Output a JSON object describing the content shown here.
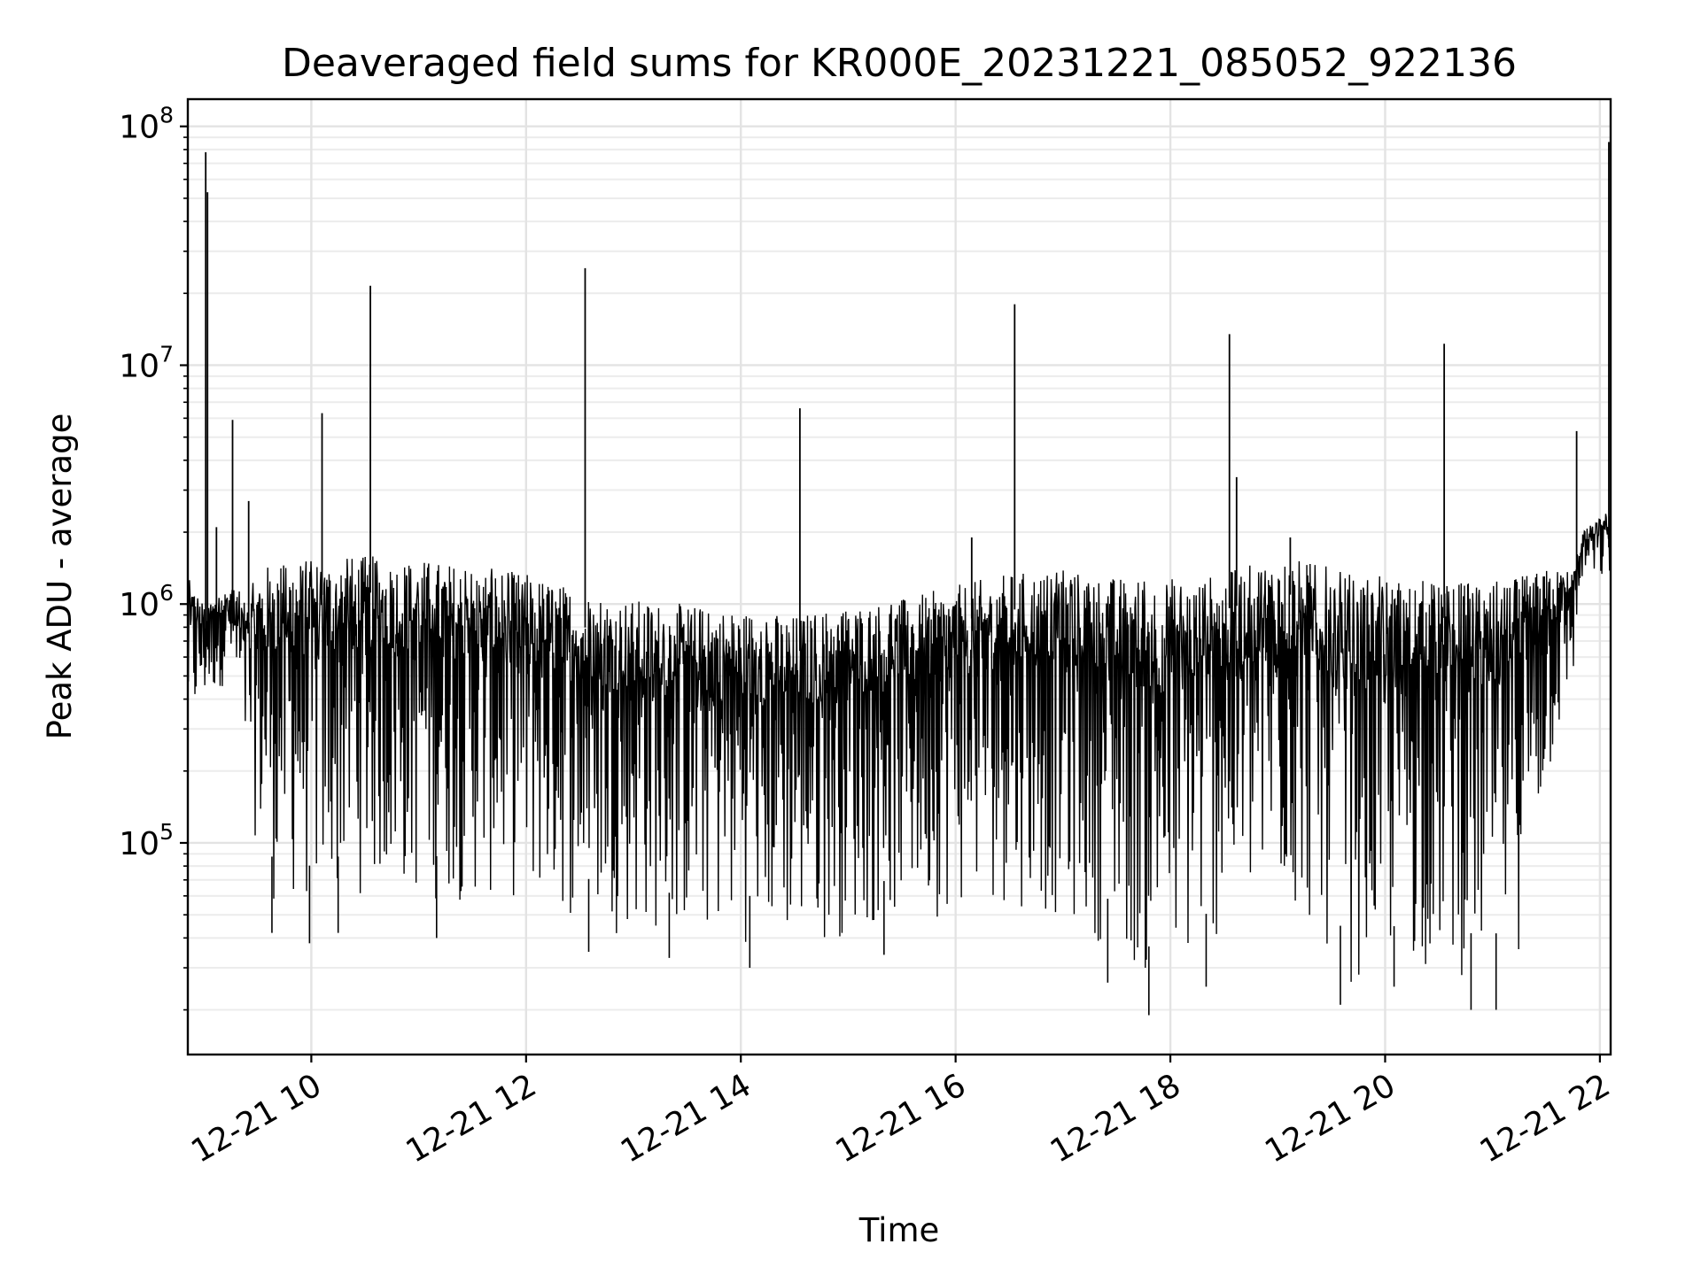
{
  "chart_data": {
    "type": "line",
    "title": "Deaveraged field sums for KR000E_20231221_085052_922136",
    "xlabel": "Time",
    "ylabel": "Peak ADU - average",
    "yscale": "log",
    "xlim": [
      "2023-12-21 08:51",
      "2023-12-21 22:06"
    ],
    "ylim": [
      13000,
      130000000
    ],
    "grid": true,
    "legend": "none",
    "x_ticks": [
      "2023-12-21 10:00",
      "2023-12-21 12:00",
      "2023-12-21 14:00",
      "2023-12-21 16:00",
      "2023-12-21 18:00",
      "2023-12-21 20:00",
      "2023-12-21 22:00"
    ],
    "x_tick_labels": [
      "12-21 10",
      "12-21 12",
      "12-21 14",
      "12-21 16",
      "12-21 18",
      "12-21 20",
      "12-21 22"
    ],
    "y_tick_values": [
      100000,
      1000000,
      10000000,
      100000000
    ],
    "y_tick_labels": [
      {
        "base": "10",
        "exp": "5"
      },
      {
        "base": "10",
        "exp": "6"
      },
      {
        "base": "10",
        "exp": "7"
      },
      {
        "base": "10",
        "exp": "8"
      }
    ],
    "series": [
      {
        "color": "#000000",
        "envelope": [
          {
            "t": "2023-12-21 08:51",
            "low": 250000,
            "high": 1300000
          },
          {
            "t": "2023-12-21 09:00",
            "low": 350000,
            "high": 1000000
          },
          {
            "t": "2023-12-21 09:15",
            "low": 500000,
            "high": 1200000
          },
          {
            "t": "2023-12-21 09:22",
            "low": 200000,
            "high": 1100000
          },
          {
            "t": "2023-12-21 09:30",
            "low": 90000,
            "high": 1300000
          },
          {
            "t": "2023-12-21 09:37",
            "low": 55000,
            "high": 1500000
          },
          {
            "t": "2023-12-21 10:00",
            "low": 50000,
            "high": 1550000
          },
          {
            "t": "2023-12-21 10:30",
            "low": 60000,
            "high": 1600000
          },
          {
            "t": "2023-12-21 11:00",
            "low": 55000,
            "high": 1550000
          },
          {
            "t": "2023-12-21 11:30",
            "low": 55000,
            "high": 1450000
          },
          {
            "t": "2023-12-21 12:00",
            "low": 55000,
            "high": 1350000
          },
          {
            "t": "2023-12-21 12:30",
            "low": 45000,
            "high": 1150000
          },
          {
            "t": "2023-12-21 13:00",
            "low": 40000,
            "high": 1050000
          },
          {
            "t": "2023-12-21 13:30",
            "low": 38000,
            "high": 1000000
          },
          {
            "t": "2023-12-21 14:00",
            "low": 38000,
            "high": 950000
          },
          {
            "t": "2023-12-21 14:30",
            "low": 35000,
            "high": 900000
          },
          {
            "t": "2023-12-21 15:00",
            "low": 40000,
            "high": 1000000
          },
          {
            "t": "2023-12-21 15:30",
            "low": 45000,
            "high": 1050000
          },
          {
            "t": "2023-12-21 16:00",
            "low": 50000,
            "high": 1200000
          },
          {
            "t": "2023-12-21 16:30",
            "low": 55000,
            "high": 1350000
          },
          {
            "t": "2023-12-21 17:00",
            "low": 45000,
            "high": 1400000
          },
          {
            "t": "2023-12-21 17:30",
            "low": 35000,
            "high": 1300000
          },
          {
            "t": "2023-12-21 17:50",
            "low": 22000,
            "high": 1300000
          },
          {
            "t": "2023-12-21 18:15",
            "low": 28000,
            "high": 1300000
          },
          {
            "t": "2023-12-21 18:30",
            "low": 40000,
            "high": 1350000
          },
          {
            "t": "2023-12-21 19:00",
            "low": 50000,
            "high": 1600000
          },
          {
            "t": "2023-12-21 19:20",
            "low": 40000,
            "high": 1500000
          },
          {
            "t": "2023-12-21 19:40",
            "low": 25000,
            "high": 1350000
          },
          {
            "t": "2023-12-21 20:00",
            "low": 28000,
            "high": 1300000
          },
          {
            "t": "2023-12-21 20:30",
            "low": 28000,
            "high": 1250000
          },
          {
            "t": "2023-12-21 21:00",
            "low": 25000,
            "high": 1250000
          },
          {
            "t": "2023-12-21 21:15",
            "low": 35000,
            "high": 1300000
          },
          {
            "t": "2023-12-21 21:30",
            "low": 150000,
            "high": 1400000
          },
          {
            "t": "2023-12-21 21:45",
            "low": 450000,
            "high": 1400000
          },
          {
            "t": "2023-12-21 21:50",
            "low": 1200000,
            "high": 2000000
          },
          {
            "t": "2023-12-21 22:06",
            "low": 1200000,
            "high": 2500000
          }
        ],
        "spikes": [
          {
            "t": "2023-12-21 09:01",
            "value": 78000000
          },
          {
            "t": "2023-12-21 09:02",
            "value": 53000000
          },
          {
            "t": "2023-12-21 09:07",
            "value": 2100000
          },
          {
            "t": "2023-12-21 09:16",
            "value": 5900000
          },
          {
            "t": "2023-12-21 09:25",
            "value": 2700000
          },
          {
            "t": "2023-12-21 10:06",
            "value": 6300000
          },
          {
            "t": "2023-12-21 10:33",
            "value": 21500000
          },
          {
            "t": "2023-12-21 12:33",
            "value": 25500000
          },
          {
            "t": "2023-12-21 14:33",
            "value": 6600000
          },
          {
            "t": "2023-12-21 16:09",
            "value": 1900000
          },
          {
            "t": "2023-12-21 16:33",
            "value": 18000000
          },
          {
            "t": "2023-12-21 18:33",
            "value": 13500000
          },
          {
            "t": "2023-12-21 18:37",
            "value": 3400000
          },
          {
            "t": "2023-12-21 19:07",
            "value": 1900000
          },
          {
            "t": "2023-12-21 20:33",
            "value": 12300000
          },
          {
            "t": "2023-12-21 21:47",
            "value": 5300000
          },
          {
            "t": "2023-12-21 22:05",
            "value": 86000000
          }
        ],
        "dips": [
          {
            "t": "2023-12-21 09:38",
            "value": 42000
          },
          {
            "t": "2023-12-21 09:59",
            "value": 38000
          },
          {
            "t": "2023-12-21 10:15",
            "value": 42000
          },
          {
            "t": "2023-12-21 11:10",
            "value": 40000
          },
          {
            "t": "2023-12-21 12:35",
            "value": 35000
          },
          {
            "t": "2023-12-21 13:20",
            "value": 33000
          },
          {
            "t": "2023-12-21 14:05",
            "value": 30000
          },
          {
            "t": "2023-12-21 15:20",
            "value": 34000
          },
          {
            "t": "2023-12-21 17:25",
            "value": 26000
          },
          {
            "t": "2023-12-21 17:48",
            "value": 19000
          },
          {
            "t": "2023-12-21 18:20",
            "value": 25000
          },
          {
            "t": "2023-12-21 19:35",
            "value": 21000
          },
          {
            "t": "2023-12-21 20:05",
            "value": 25000
          },
          {
            "t": "2023-12-21 20:48",
            "value": 20000
          },
          {
            "t": "2023-12-21 21:02",
            "value": 20000
          }
        ]
      }
    ]
  }
}
